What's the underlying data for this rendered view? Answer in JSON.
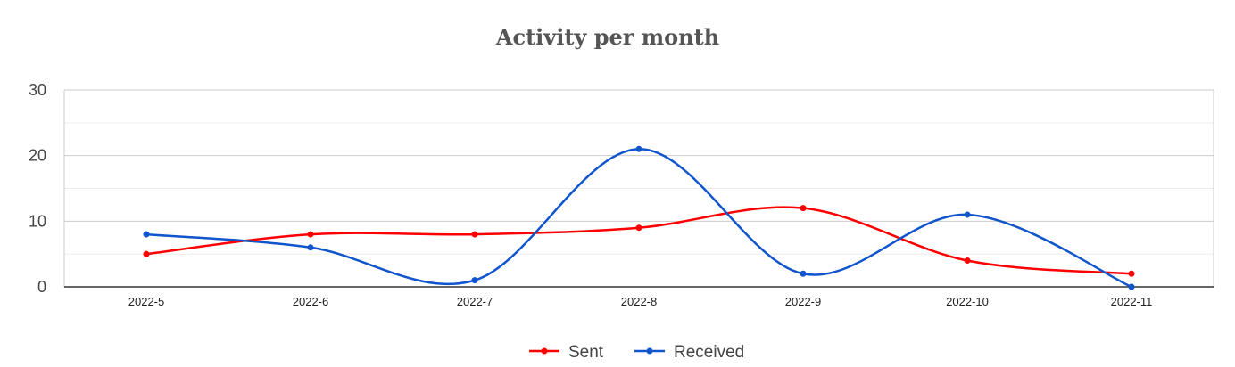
{
  "chart_data": {
    "type": "line",
    "title": "Activity per month",
    "categories": [
      "2022-5",
      "2022-6",
      "2022-7",
      "2022-8",
      "2022-9",
      "2022-10",
      "2022-11"
    ],
    "series": [
      {
        "name": "Sent",
        "color": "#ff0000",
        "values": [
          5,
          8,
          8,
          9,
          12,
          4,
          2
        ]
      },
      {
        "name": "Received",
        "color": "#1155cc",
        "values": [
          8,
          6,
          1,
          21,
          2,
          11,
          0
        ]
      }
    ],
    "ylim": [
      0,
      30
    ],
    "yticks": [
      0,
      10,
      20,
      30
    ],
    "grid": true,
    "smooth": true,
    "legend": "bottom"
  }
}
